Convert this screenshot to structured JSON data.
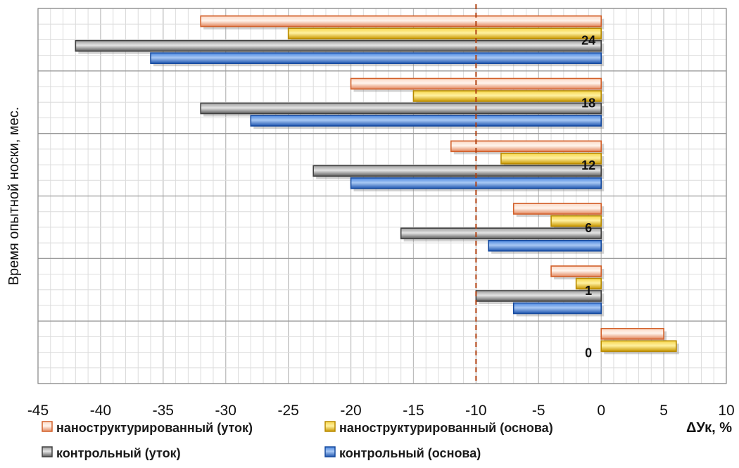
{
  "chart_data": {
    "type": "bar",
    "orientation": "horizontal",
    "categories": [
      "24",
      "18",
      "12",
      "6",
      "1",
      "0"
    ],
    "series": [
      {
        "name": "наноструктурированный (уток)",
        "color": "#f4a582",
        "values": [
          -32,
          -20,
          -12,
          -7,
          -4,
          5
        ]
      },
      {
        "name": "наноструктурированный (основа)",
        "color": "#e8b400",
        "values": [
          -25,
          -15,
          -8,
          -4,
          -2,
          6
        ]
      },
      {
        "name": "контрольный (уток)",
        "color": "#8a8a8a",
        "values": [
          -42,
          -32,
          -23,
          -16,
          -10,
          0
        ]
      },
      {
        "name": "контрольный (основа)",
        "color": "#2e6fd0",
        "values": [
          -36,
          -28,
          -20,
          -9,
          -7,
          0
        ]
      }
    ],
    "xlabel": "ΔУк, %",
    "ylabel": "Время опытной носки, мес.",
    "xlim": [
      -45,
      10
    ],
    "xticks": [
      "-45",
      "-40",
      "-35",
      "-30",
      "-25",
      "-20",
      "-15",
      "-10",
      "-5",
      "0",
      "5",
      "10"
    ],
    "reference_line": {
      "x": -10,
      "style": "dashed",
      "color": "#b04010"
    },
    "grid": true,
    "legend_position": "bottom"
  }
}
